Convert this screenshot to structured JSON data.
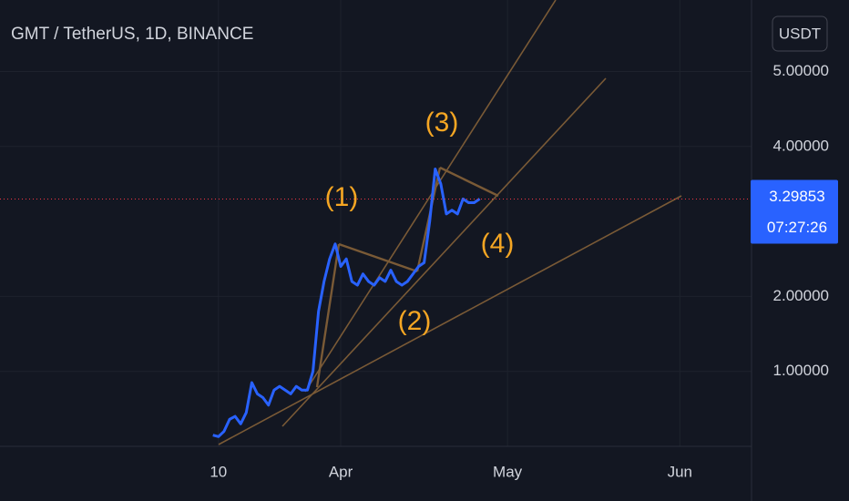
{
  "chart_data": {
    "type": "line",
    "title": "GMT / TetherUS, 1D, BINANCE",
    "currency": "USDT",
    "color": "#2962ff",
    "x": [
      9,
      10,
      11,
      12,
      13,
      14,
      15,
      16,
      17,
      18,
      19,
      20,
      21,
      22,
      23,
      24,
      25,
      26,
      27,
      28,
      29,
      30,
      31,
      32,
      33,
      34,
      35,
      36,
      37,
      38,
      39,
      40,
      41,
      42,
      43,
      44,
      45,
      46,
      47,
      48,
      49,
      50,
      51,
      52,
      53,
      54,
      55,
      56,
      57
    ],
    "values": [
      0.15,
      0.13,
      0.2,
      0.36,
      0.4,
      0.3,
      0.45,
      0.85,
      0.7,
      0.65,
      0.55,
      0.75,
      0.8,
      0.75,
      0.7,
      0.8,
      0.75,
      0.75,
      1.0,
      1.8,
      2.2,
      2.5,
      2.7,
      2.4,
      2.5,
      2.2,
      2.15,
      2.3,
      2.2,
      2.15,
      2.25,
      2.2,
      2.35,
      2.2,
      2.15,
      2.2,
      2.3,
      2.4,
      2.45,
      3.0,
      3.7,
      3.5,
      3.1,
      3.15,
      3.1,
      3.3,
      3.25,
      3.25,
      3.3
    ],
    "xlim": [
      -29.3,
      105.9
    ],
    "xticks": [
      {
        "value": 10,
        "label": "10"
      },
      {
        "value": 32,
        "label": "Apr"
      },
      {
        "value": 62,
        "label": "May"
      },
      {
        "value": 93,
        "label": "Jun"
      }
    ],
    "ylim": [
      0,
      5.954
    ],
    "yticks": [
      {
        "value": 1,
        "label": "1.00000"
      },
      {
        "value": 2,
        "label": "2.00000"
      },
      {
        "value": 4,
        "label": "4.00000"
      },
      {
        "value": 5,
        "label": "5.00000"
      }
    ],
    "grid": true,
    "last_price": 3.29853,
    "countdown": "07:27:26",
    "annotations": [
      "(1)",
      "(2)",
      "(3)",
      "(4)"
    ]
  }
}
